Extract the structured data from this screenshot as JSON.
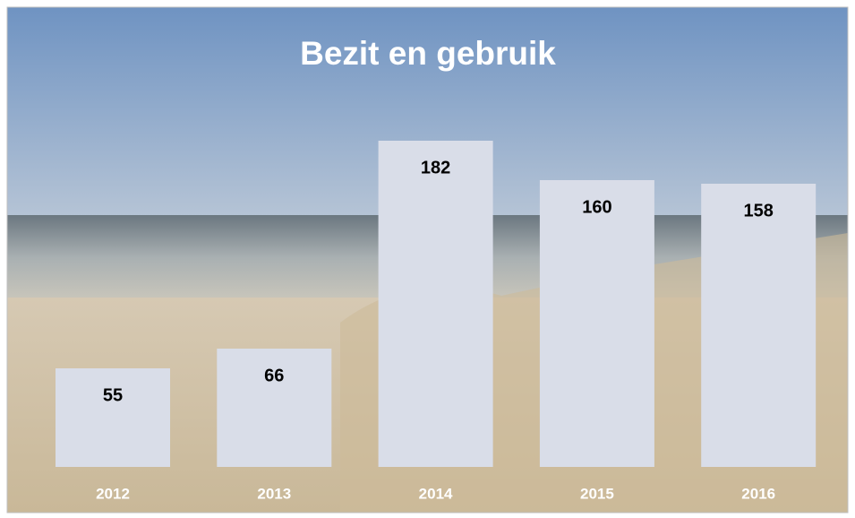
{
  "chart_data": {
    "type": "bar",
    "title": "Bezit en gebruik",
    "categories": [
      "2012",
      "2013",
      "2014",
      "2015",
      "2016"
    ],
    "values": [
      55,
      66,
      182,
      160,
      158
    ],
    "color": "#d9dde8"
  }
}
